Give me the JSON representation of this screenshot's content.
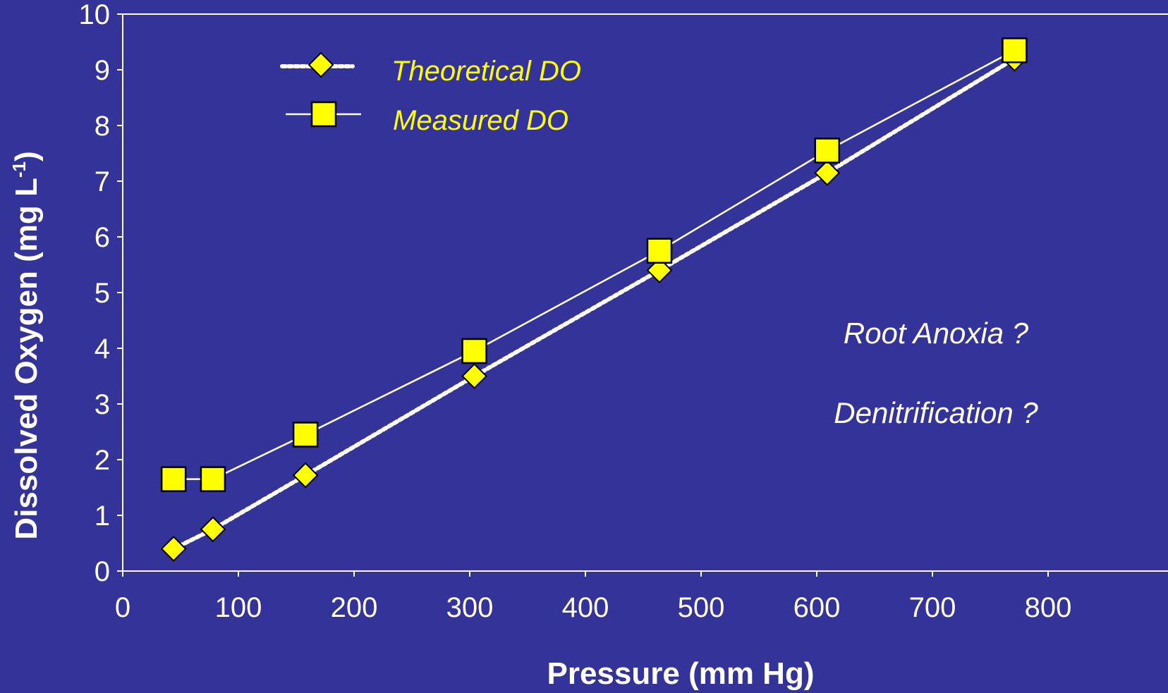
{
  "chart_data": {
    "type": "line",
    "xlabel": "Pressure (mm Hg)",
    "ylabel": "Dissolved Oxygen (mg L",
    "ylabel_sup": "-1",
    "ylabel_close": ")",
    "xlim": [
      0,
      900
    ],
    "ylim": [
      0,
      10
    ],
    "xticks": [
      0,
      100,
      200,
      300,
      400,
      500,
      600,
      700,
      800
    ],
    "yticks": [
      0,
      1,
      2,
      3,
      4,
      5,
      6,
      7,
      8,
      9,
      10
    ],
    "grid": false,
    "legend_position": "top-left",
    "series": [
      {
        "name": "Theoretical DO",
        "marker": "diamond",
        "line": "dotted",
        "x": [
          44,
          78,
          158,
          304,
          464,
          609,
          771
        ],
        "y": [
          0.4,
          0.75,
          1.72,
          3.5,
          5.4,
          7.15,
          9.2
        ]
      },
      {
        "name": "Measured DO",
        "marker": "square",
        "line": "solid",
        "x": [
          44,
          78,
          158,
          304,
          464,
          609,
          771
        ],
        "y": [
          1.65,
          1.65,
          2.45,
          3.95,
          5.75,
          7.55,
          9.35
        ]
      }
    ],
    "annotations": [
      "Root Anoxia ?",
      "Denitrification ?"
    ]
  },
  "colors": {
    "background": "#343399",
    "axis": "#ffffff",
    "marker_fill": "#ffff00",
    "marker_stroke": "#000000",
    "legend_text": "#ffff00"
  }
}
